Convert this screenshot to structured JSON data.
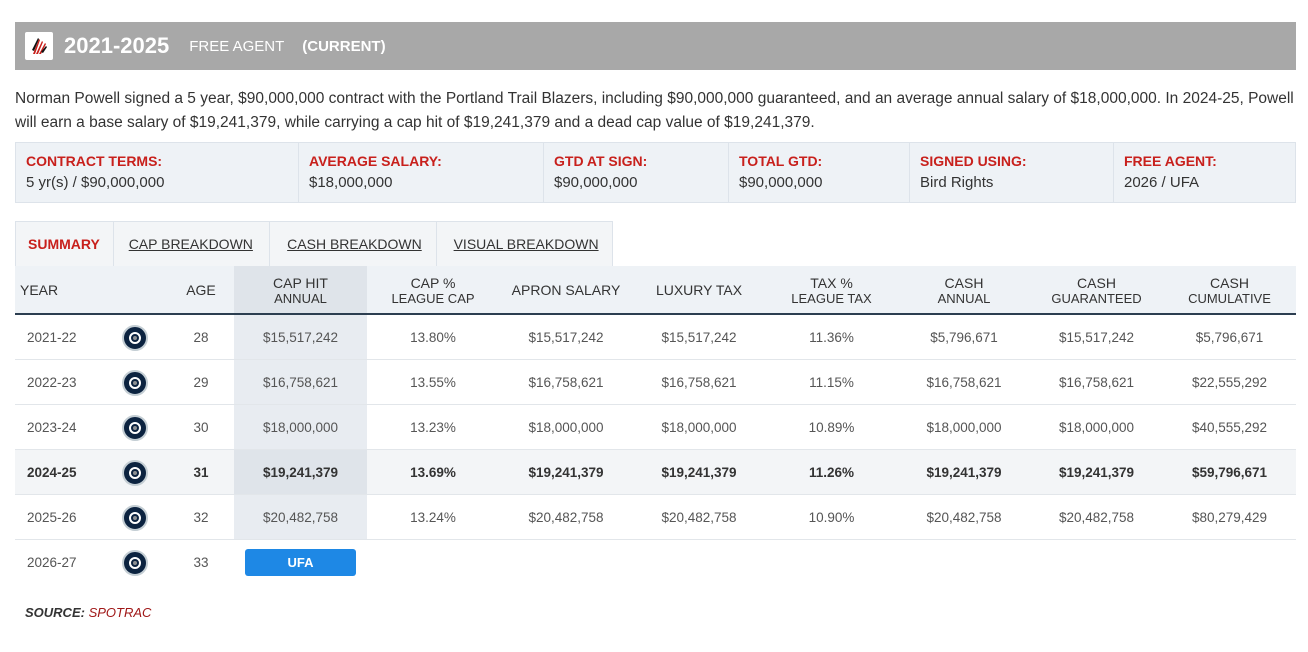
{
  "header": {
    "years": "2021-2025",
    "type": "FREE AGENT",
    "status": "(CURRENT)",
    "logo_icon": "trail-blazers-pinwheel-icon"
  },
  "description": {
    "line1": "Norman Powell signed a 5 year, $90,000,000 contract with the Portland Trail Blazers, including $90,000,000 guaranteed, and an average annual salary of $18,000,000. In 2024-25, Powell",
    "line2": "will earn a base salary of $19,241,379, while carrying a cap hit of $19,241,379 and a dead cap value of $19,241,379."
  },
  "terms": [
    {
      "label": "CONTRACT TERMS:",
      "value": "5 yr(s) / $90,000,000"
    },
    {
      "label": "AVERAGE SALARY:",
      "value": "$18,000,000"
    },
    {
      "label": "GTD AT SIGN:",
      "value": "$90,000,000"
    },
    {
      "label": "TOTAL GTD:",
      "value": "$90,000,000"
    },
    {
      "label": "SIGNED USING:",
      "value": "Bird Rights"
    },
    {
      "label": "FREE AGENT:",
      "value": "2026 / UFA"
    }
  ],
  "tabs": [
    "SUMMARY",
    "CAP BREAKDOWN",
    "CASH BREAKDOWN",
    "VISUAL BREAKDOWN"
  ],
  "columns": {
    "year": "YEAR",
    "age": "AGE",
    "cap_hit": [
      "CAP HIT",
      "ANNUAL"
    ],
    "cap_pct": [
      "CAP %",
      "LEAGUE CAP"
    ],
    "apron": "APRON SALARY",
    "luxury": "LUXURY TAX",
    "tax_pct": [
      "TAX %",
      "LEAGUE TAX"
    ],
    "cash_annual": [
      "CASH",
      "ANNUAL"
    ],
    "cash_gtd": [
      "CASH",
      "GUARANTEED"
    ],
    "cash_cum": [
      "CASH",
      "CUMULATIVE"
    ]
  },
  "rows": [
    {
      "year": "2021-22",
      "team_icon": "clippers-icon",
      "age": "28",
      "cap_hit": "$15,517,242",
      "cap_pct": "13.80%",
      "apron": "$15,517,242",
      "luxury": "$15,517,242",
      "tax_pct": "11.36%",
      "cash_annual": "$5,796,671",
      "cash_gtd": "$15,517,242",
      "cash_cum": "$5,796,671"
    },
    {
      "year": "2022-23",
      "team_icon": "clippers-icon",
      "age": "29",
      "cap_hit": "$16,758,621",
      "cap_pct": "13.55%",
      "apron": "$16,758,621",
      "luxury": "$16,758,621",
      "tax_pct": "11.15%",
      "cash_annual": "$16,758,621",
      "cash_gtd": "$16,758,621",
      "cash_cum": "$22,555,292"
    },
    {
      "year": "2023-24",
      "team_icon": "clippers-icon",
      "age": "30",
      "cap_hit": "$18,000,000",
      "cap_pct": "13.23%",
      "apron": "$18,000,000",
      "luxury": "$18,000,000",
      "tax_pct": "10.89%",
      "cash_annual": "$18,000,000",
      "cash_gtd": "$18,000,000",
      "cash_cum": "$40,555,292"
    },
    {
      "year": "2024-25",
      "team_icon": "clippers-icon",
      "age": "31",
      "cap_hit": "$19,241,379",
      "cap_pct": "13.69%",
      "apron": "$19,241,379",
      "luxury": "$19,241,379",
      "tax_pct": "11.26%",
      "cash_annual": "$19,241,379",
      "cash_gtd": "$19,241,379",
      "cash_cum": "$59,796,671"
    },
    {
      "year": "2025-26",
      "team_icon": "clippers-icon",
      "age": "32",
      "cap_hit": "$20,482,758",
      "cap_pct": "13.24%",
      "apron": "$20,482,758",
      "luxury": "$20,482,758",
      "tax_pct": "10.90%",
      "cash_annual": "$20,482,758",
      "cash_gtd": "$20,482,758",
      "cash_cum": "$80,279,429"
    }
  ],
  "final_row": {
    "year": "2026-27",
    "team_icon": "clippers-icon",
    "age": "33",
    "badge": "UFA"
  },
  "source": {
    "label": "SOURCE:",
    "name": "SPOTRAC"
  },
  "colors": {
    "accent_red": "#c8201c",
    "header_gray": "#a8a8a8",
    "badge_blue": "#1e88e5"
  }
}
